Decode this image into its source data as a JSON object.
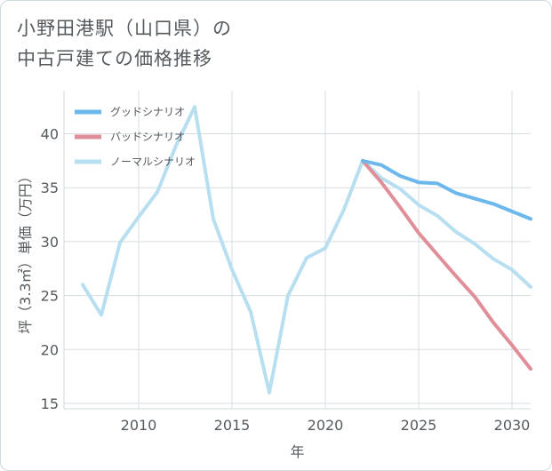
{
  "chart_data": {
    "type": "line",
    "title_lines": [
      "小野田港駅（山口県）の",
      "中古戸建ての価格推移"
    ],
    "xlabel": "年",
    "ylabel": "坪（3.3㎡）単価（万円）",
    "xlim": [
      2006,
      2031
    ],
    "ylim": [
      14.5,
      44
    ],
    "x_ticks": [
      2010,
      2015,
      2020,
      2025,
      2030
    ],
    "y_ticks": [
      15,
      20,
      25,
      30,
      35,
      40
    ],
    "grid": true,
    "legend_position": "top-left",
    "series": [
      {
        "name": "グッドシナリオ",
        "color": "#6cb8ec",
        "x": [
          2022,
          2023,
          2024,
          2025,
          2026,
          2027,
          2028,
          2029,
          2030,
          2031
        ],
        "y": [
          37.5,
          37.1,
          36.1,
          35.5,
          35.4,
          34.5,
          34.0,
          33.5,
          32.8,
          32.1
        ]
      },
      {
        "name": "バッドシナリオ",
        "color": "#e08f98",
        "x": [
          2022,
          2023,
          2024,
          2025,
          2026,
          2027,
          2028,
          2029,
          2030,
          2031
        ],
        "y": [
          37.5,
          35.5,
          33.2,
          30.8,
          28.8,
          26.8,
          24.9,
          22.5,
          20.4,
          18.2
        ]
      },
      {
        "name": "ノーマルシナリオ",
        "color": "#b7dff0",
        "x": [
          2007,
          2008,
          2009,
          2010,
          2011,
          2012,
          2013,
          2014,
          2015,
          2016,
          2017,
          2018,
          2019,
          2020,
          2021,
          2022,
          2023,
          2024,
          2025,
          2026,
          2027,
          2028,
          2029,
          2030,
          2031
        ],
        "y": [
          26.0,
          23.2,
          29.9,
          32.3,
          34.6,
          38.9,
          42.5,
          32.1,
          27.4,
          23.5,
          16.0,
          25.0,
          28.5,
          29.4,
          33.0,
          37.5,
          35.9,
          34.9,
          33.4,
          32.4,
          30.9,
          29.8,
          28.4,
          27.4,
          25.8
        ]
      }
    ]
  }
}
